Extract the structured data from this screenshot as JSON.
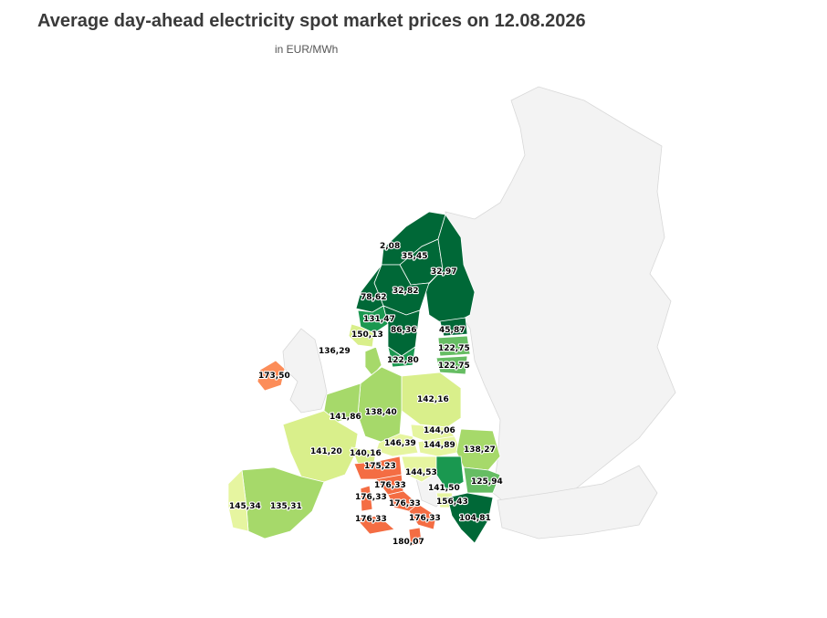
{
  "title": "Average day-ahead electricity spot market prices on 12.08.2026",
  "subtitle": "in EUR/MWh",
  "colors": {
    "dark_green": "#006837",
    "green": "#1a9850",
    "mid_green": "#66bd63",
    "light_green": "#a6d96a",
    "pale_green": "#d9ef8b",
    "yellow_green": "#e6f5a0",
    "orange": "#f46d43",
    "light_orange": "#fc8d59",
    "background": "#f3f3f3"
  },
  "zones": [
    {
      "name": "NO4",
      "price": "2,08"
    },
    {
      "name": "SE1",
      "price": "35,45"
    },
    {
      "name": "FI",
      "price": "32,97"
    },
    {
      "name": "SE2",
      "price": "32,82"
    },
    {
      "name": "NO3",
      "price": "78,62"
    },
    {
      "name": "NO1",
      "price": "131,47"
    },
    {
      "name": "SE3",
      "price": "86,36"
    },
    {
      "name": "EE",
      "price": "45,87"
    },
    {
      "name": "NO2",
      "price": "150,13"
    },
    {
      "name": "LV",
      "price": "122,75"
    },
    {
      "name": "LT",
      "price": "122,75"
    },
    {
      "name": "SE4",
      "price": "122,80"
    },
    {
      "name": "DK1",
      "price": "136,29"
    },
    {
      "name": "IE",
      "price": "173,50"
    },
    {
      "name": "PL",
      "price": "142,16"
    },
    {
      "name": "DE",
      "price": "138,40"
    },
    {
      "name": "BE",
      "price": "141,86"
    },
    {
      "name": "SK",
      "price": "144,06"
    },
    {
      "name": "HU",
      "price": "144,89"
    },
    {
      "name": "RO",
      "price": "138,27"
    },
    {
      "name": "AT",
      "price": "146,39"
    },
    {
      "name": "FR",
      "price": "141,20"
    },
    {
      "name": "CH",
      "price": "140,16"
    },
    {
      "name": "IT-North",
      "price": "175,23"
    },
    {
      "name": "HR",
      "price": "144,53"
    },
    {
      "name": "BG",
      "price": "125,94"
    },
    {
      "name": "RS",
      "price": "141,50"
    },
    {
      "name": "IT-CNorth",
      "price": "176,33"
    },
    {
      "name": "IT-Sardinia",
      "price": "176,33"
    },
    {
      "name": "IT-CSouth",
      "price": "176,33"
    },
    {
      "name": "ME",
      "price": "156,43"
    },
    {
      "name": "PT",
      "price": "145,34"
    },
    {
      "name": "ES",
      "price": "135,31"
    },
    {
      "name": "IT-Sicily",
      "price": "176,33"
    },
    {
      "name": "IT-South",
      "price": "176,33"
    },
    {
      "name": "GR",
      "price": "104,81"
    },
    {
      "name": "IT-Calabria",
      "price": "180,07"
    }
  ]
}
